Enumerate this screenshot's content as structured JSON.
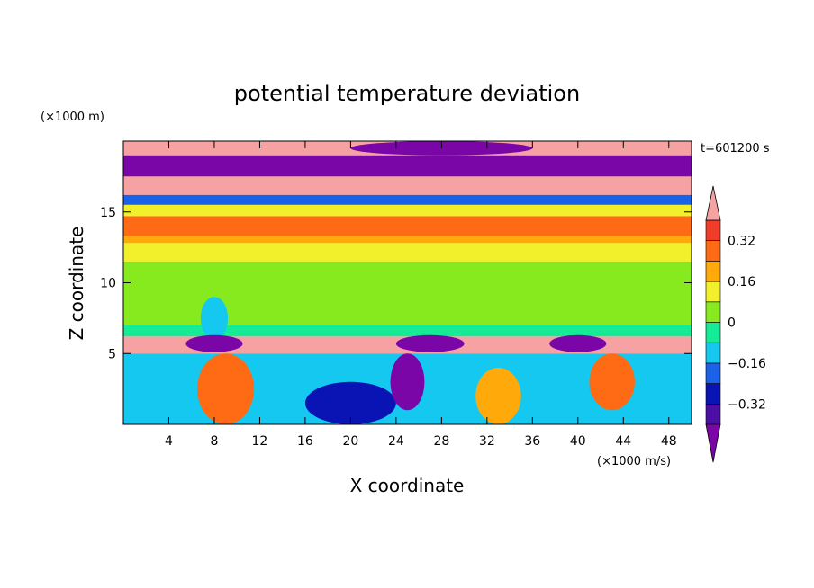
{
  "chart_data": {
    "type": "heatmap",
    "title": "potential temperature deviation",
    "xlabel": "X coordinate",
    "ylabel": "Z coordinate",
    "x_unit": "(×1000 m/s)",
    "y_unit": "(×1000 m)",
    "time_label": "t=601200 s",
    "xlim": [
      0,
      50
    ],
    "ylim": [
      0,
      20
    ],
    "x_ticks": [
      4,
      8,
      12,
      16,
      20,
      24,
      28,
      32,
      36,
      40,
      44,
      48
    ],
    "y_ticks": [
      5,
      10,
      15
    ],
    "colorbar": {
      "levels": [
        -0.4,
        -0.32,
        -0.24,
        -0.16,
        -0.08,
        0,
        0.08,
        0.16,
        0.24,
        0.32,
        0.4
      ],
      "tick_labels": [
        "0.32",
        "0.16",
        "0",
        "−0.16",
        "−0.32"
      ],
      "tick_values": [
        0.32,
        0.16,
        0,
        -0.16,
        -0.32
      ],
      "colors": [
        "#7a06a8",
        "#4b0fa6",
        "#0a14b4",
        "#1a62e8",
        "#14c8f0",
        "#14eb96",
        "#86ea1e",
        "#f2f02a",
        "#ffaa0a",
        "#ff6a14",
        "#f03c28",
        "#f7a2a2"
      ]
    },
    "bands": [
      {
        "z": [
          19.0,
          20.0
        ],
        "value": 0.45
      },
      {
        "z": [
          17.5,
          19.0
        ],
        "value": -0.45
      },
      {
        "z": [
          16.2,
          17.5
        ],
        "value": 0.45
      },
      {
        "z": [
          15.5,
          16.2
        ],
        "value": -0.2
      },
      {
        "z": [
          14.7,
          15.5
        ],
        "value": 0.1
      },
      {
        "z": [
          14.0,
          14.7
        ],
        "value": 0.3
      },
      {
        "z": [
          13.3,
          14.0
        ],
        "value": 0.25
      },
      {
        "z": [
          12.8,
          13.3
        ],
        "value": 0.16
      },
      {
        "z": [
          11.5,
          12.8
        ],
        "value": 0.1
      },
      {
        "z": [
          7.0,
          11.5
        ],
        "value": 0.05
      },
      {
        "z": [
          6.2,
          7.0
        ],
        "value": -0.02
      },
      {
        "z": [
          5.0,
          6.2
        ],
        "value": 0.45
      },
      {
        "z": [
          0.0,
          5.0
        ],
        "value": -0.1
      }
    ],
    "blobs": [
      {
        "x": 9,
        "z": 2.5,
        "rx": 2.5,
        "rz": 2.5,
        "value": 0.3
      },
      {
        "x": 20,
        "z": 1.5,
        "rx": 4,
        "rz": 1.5,
        "value": -0.32
      },
      {
        "x": 25,
        "z": 3,
        "rx": 1.5,
        "rz": 2,
        "value": -0.45
      },
      {
        "x": 33,
        "z": 2,
        "rx": 2,
        "rz": 2,
        "value": 0.16
      },
      {
        "x": 43,
        "z": 3,
        "rx": 2,
        "rz": 2,
        "value": 0.25
      },
      {
        "x": 8,
        "z": 7.5,
        "rx": 1.2,
        "rz": 1.5,
        "value": -0.16
      },
      {
        "x": 8,
        "z": 5.7,
        "rx": 2.5,
        "rz": 0.6,
        "value": -0.45
      },
      {
        "x": 27,
        "z": 5.7,
        "rx": 3,
        "rz": 0.6,
        "value": -0.45
      },
      {
        "x": 40,
        "z": 5.7,
        "rx": 2.5,
        "rz": 0.6,
        "value": -0.45
      },
      {
        "x": 28,
        "z": 19.5,
        "rx": 8,
        "rz": 0.5,
        "value": -0.45
      }
    ]
  }
}
